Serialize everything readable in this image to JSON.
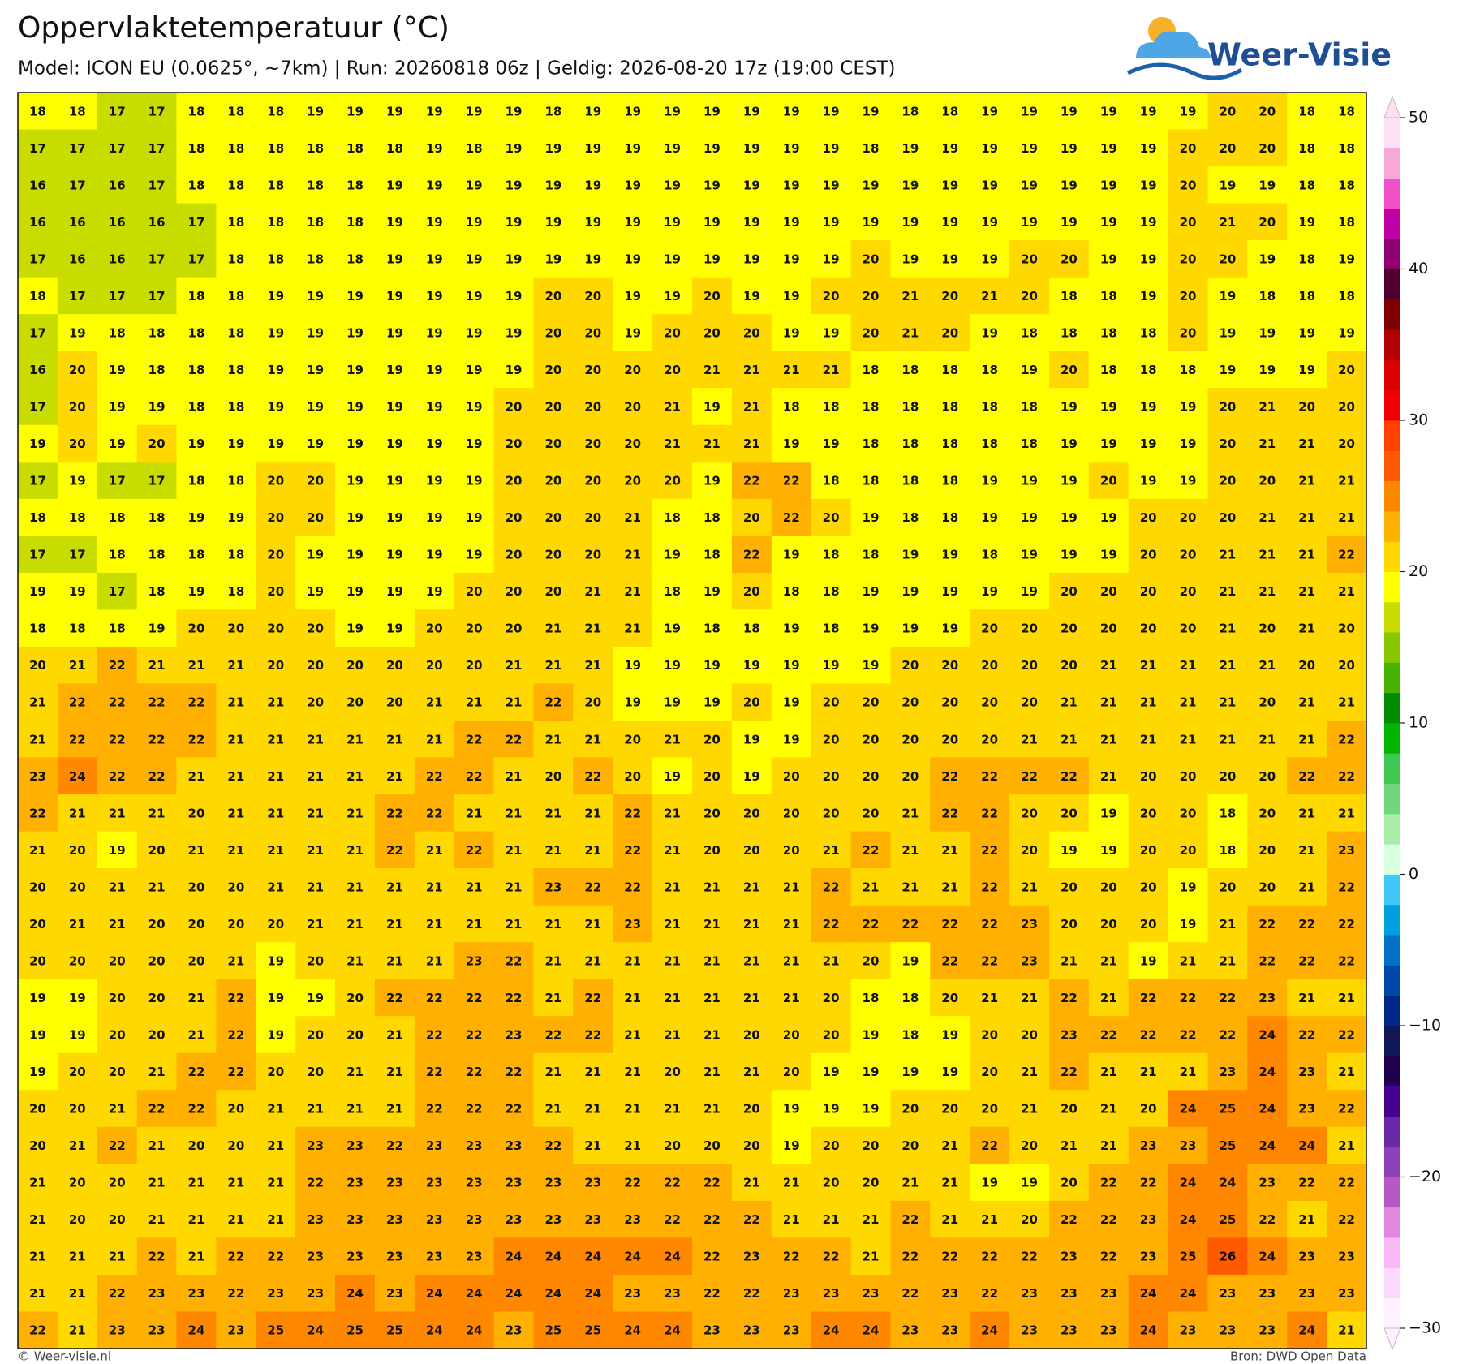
{
  "chart_data": {
    "type": "grid-map",
    "title": "Oppervlaktetemperatuur (°C)",
    "subtitle": "Model: ICON EU (0.0625°, ~7km)  |  Run: 20260818 06z  |  Geldig: 2026-08-20 17z (19:00 CEST)",
    "logo": "Weer-Visie",
    "footer_left": "© Weer-visie.nl",
    "footer_right": "Bron: DWD Open Data",
    "values": [
      [
        18,
        18,
        17,
        17,
        18,
        18,
        18,
        19,
        19,
        19,
        19,
        19,
        19,
        18,
        19,
        19,
        19,
        19,
        19,
        19,
        19,
        19,
        18,
        18,
        19,
        19,
        19,
        19,
        19,
        19,
        20,
        20,
        18,
        18
      ],
      [
        17,
        17,
        17,
        17,
        18,
        18,
        18,
        18,
        18,
        18,
        19,
        18,
        19,
        19,
        19,
        19,
        19,
        19,
        19,
        19,
        19,
        18,
        19,
        19,
        19,
        19,
        19,
        19,
        19,
        20,
        20,
        20,
        18,
        18
      ],
      [
        16,
        17,
        16,
        17,
        18,
        18,
        18,
        18,
        18,
        19,
        19,
        19,
        19,
        19,
        19,
        19,
        19,
        19,
        19,
        19,
        19,
        19,
        19,
        19,
        19,
        19,
        19,
        19,
        19,
        20,
        19,
        19,
        18,
        18
      ],
      [
        16,
        16,
        16,
        16,
        17,
        18,
        18,
        18,
        18,
        19,
        19,
        19,
        19,
        19,
        19,
        19,
        19,
        19,
        19,
        19,
        19,
        19,
        19,
        19,
        19,
        19,
        19,
        19,
        19,
        20,
        21,
        20,
        19,
        18
      ],
      [
        17,
        16,
        16,
        17,
        17,
        18,
        18,
        18,
        18,
        19,
        19,
        19,
        19,
        19,
        19,
        19,
        19,
        19,
        19,
        19,
        19,
        20,
        19,
        19,
        19,
        20,
        20,
        19,
        19,
        20,
        20,
        19,
        18,
        19
      ],
      [
        18,
        17,
        17,
        17,
        18,
        18,
        19,
        19,
        19,
        19,
        19,
        19,
        19,
        20,
        20,
        19,
        19,
        20,
        19,
        19,
        20,
        20,
        21,
        20,
        21,
        20,
        18,
        18,
        19,
        20,
        19,
        18,
        18,
        18
      ],
      [
        17,
        19,
        18,
        18,
        18,
        18,
        19,
        19,
        19,
        19,
        19,
        19,
        19,
        20,
        20,
        19,
        20,
        20,
        20,
        19,
        19,
        20,
        21,
        20,
        19,
        18,
        18,
        18,
        18,
        20,
        19,
        19,
        19,
        19
      ],
      [
        16,
        20,
        19,
        18,
        18,
        18,
        19,
        19,
        19,
        19,
        19,
        19,
        19,
        20,
        20,
        20,
        20,
        21,
        21,
        21,
        21,
        18,
        18,
        18,
        18,
        19,
        20,
        18,
        18,
        18,
        19,
        19,
        19,
        20
      ],
      [
        17,
        20,
        19,
        19,
        18,
        18,
        19,
        19,
        19,
        19,
        19,
        19,
        20,
        20,
        20,
        20,
        21,
        19,
        21,
        18,
        18,
        18,
        18,
        18,
        18,
        18,
        19,
        19,
        19,
        19,
        20,
        21,
        20,
        20
      ],
      [
        19,
        20,
        19,
        20,
        19,
        19,
        19,
        19,
        19,
        19,
        19,
        19,
        20,
        20,
        20,
        20,
        21,
        21,
        21,
        19,
        19,
        18,
        18,
        18,
        18,
        18,
        19,
        19,
        19,
        19,
        20,
        21,
        21,
        20
      ],
      [
        17,
        19,
        17,
        17,
        18,
        18,
        20,
        20,
        19,
        19,
        19,
        19,
        20,
        20,
        20,
        20,
        20,
        19,
        22,
        22,
        18,
        18,
        18,
        18,
        19,
        19,
        19,
        20,
        19,
        19,
        20,
        20,
        21,
        21
      ],
      [
        18,
        18,
        18,
        18,
        19,
        19,
        20,
        20,
        19,
        19,
        19,
        19,
        20,
        20,
        20,
        21,
        18,
        18,
        20,
        22,
        20,
        19,
        18,
        18,
        19,
        19,
        19,
        19,
        20,
        20,
        20,
        21,
        21,
        21
      ],
      [
        17,
        17,
        18,
        18,
        18,
        18,
        20,
        19,
        19,
        19,
        19,
        19,
        20,
        20,
        20,
        21,
        19,
        18,
        22,
        19,
        18,
        18,
        19,
        19,
        18,
        19,
        19,
        19,
        20,
        20,
        21,
        21,
        21,
        22
      ],
      [
        19,
        19,
        17,
        18,
        19,
        18,
        20,
        19,
        19,
        19,
        19,
        20,
        20,
        20,
        21,
        21,
        18,
        19,
        20,
        18,
        18,
        19,
        19,
        19,
        19,
        19,
        20,
        20,
        20,
        20,
        21,
        21,
        21,
        21
      ],
      [
        18,
        18,
        18,
        19,
        20,
        20,
        20,
        20,
        19,
        19,
        20,
        20,
        20,
        21,
        21,
        21,
        19,
        18,
        18,
        19,
        18,
        19,
        19,
        19,
        20,
        20,
        20,
        20,
        20,
        20,
        21,
        20,
        21,
        20
      ],
      [
        20,
        21,
        22,
        21,
        21,
        21,
        20,
        20,
        20,
        20,
        20,
        20,
        21,
        21,
        21,
        19,
        19,
        19,
        19,
        19,
        19,
        19,
        20,
        20,
        20,
        20,
        20,
        21,
        21,
        21,
        21,
        21,
        20,
        20
      ],
      [
        21,
        22,
        22,
        22,
        22,
        21,
        21,
        20,
        20,
        20,
        21,
        21,
        21,
        22,
        20,
        19,
        19,
        19,
        20,
        19,
        20,
        20,
        20,
        20,
        20,
        20,
        21,
        21,
        21,
        21,
        21,
        20,
        21,
        21
      ],
      [
        21,
        22,
        22,
        22,
        22,
        21,
        21,
        21,
        21,
        21,
        21,
        22,
        22,
        21,
        21,
        20,
        21,
        20,
        19,
        19,
        20,
        20,
        20,
        20,
        20,
        21,
        21,
        21,
        21,
        21,
        21,
        21,
        21,
        22
      ],
      [
        23,
        24,
        22,
        22,
        21,
        21,
        21,
        21,
        21,
        21,
        22,
        22,
        21,
        20,
        22,
        20,
        19,
        20,
        19,
        20,
        20,
        20,
        20,
        22,
        22,
        22,
        22,
        21,
        20,
        20,
        20,
        20,
        22,
        22
      ],
      [
        22,
        21,
        21,
        21,
        20,
        21,
        21,
        21,
        21,
        22,
        22,
        21,
        21,
        21,
        21,
        22,
        21,
        20,
        20,
        20,
        20,
        20,
        21,
        22,
        22,
        20,
        20,
        19,
        20,
        20,
        18,
        20,
        21,
        21
      ],
      [
        21,
        20,
        19,
        20,
        21,
        21,
        21,
        21,
        21,
        22,
        21,
        22,
        21,
        21,
        21,
        22,
        21,
        20,
        20,
        20,
        21,
        22,
        21,
        21,
        22,
        20,
        19,
        19,
        20,
        20,
        18,
        20,
        21,
        23
      ],
      [
        20,
        20,
        21,
        21,
        20,
        20,
        21,
        21,
        21,
        21,
        21,
        21,
        21,
        23,
        22,
        22,
        21,
        21,
        21,
        21,
        22,
        21,
        21,
        21,
        22,
        21,
        20,
        20,
        20,
        19,
        20,
        20,
        21,
        22
      ],
      [
        20,
        21,
        21,
        20,
        20,
        20,
        20,
        21,
        21,
        21,
        21,
        21,
        21,
        21,
        21,
        23,
        21,
        21,
        21,
        21,
        22,
        22,
        22,
        22,
        22,
        23,
        20,
        20,
        20,
        19,
        21,
        22,
        22,
        22
      ],
      [
        20,
        20,
        20,
        20,
        20,
        21,
        19,
        20,
        21,
        21,
        21,
        23,
        22,
        21,
        21,
        21,
        21,
        21,
        21,
        21,
        21,
        20,
        19,
        22,
        22,
        23,
        21,
        21,
        19,
        21,
        21,
        22,
        22,
        22
      ],
      [
        19,
        19,
        20,
        20,
        21,
        22,
        19,
        19,
        20,
        22,
        22,
        22,
        22,
        21,
        22,
        21,
        21,
        21,
        21,
        21,
        20,
        18,
        18,
        20,
        21,
        21,
        22,
        21,
        22,
        22,
        22,
        23,
        21,
        21
      ],
      [
        19,
        19,
        20,
        20,
        21,
        22,
        19,
        20,
        20,
        21,
        22,
        22,
        23,
        22,
        22,
        21,
        21,
        21,
        20,
        20,
        20,
        19,
        18,
        19,
        20,
        20,
        23,
        22,
        22,
        22,
        22,
        24,
        22,
        22
      ],
      [
        19,
        20,
        20,
        21,
        22,
        22,
        20,
        20,
        21,
        21,
        22,
        22,
        22,
        21,
        21,
        21,
        20,
        21,
        21,
        20,
        19,
        19,
        19,
        19,
        20,
        21,
        22,
        21,
        21,
        21,
        23,
        24,
        23,
        21
      ],
      [
        20,
        20,
        21,
        22,
        22,
        20,
        21,
        21,
        21,
        21,
        22,
        22,
        22,
        21,
        21,
        21,
        21,
        21,
        20,
        19,
        19,
        19,
        20,
        20,
        20,
        21,
        20,
        21,
        20,
        24,
        25,
        24,
        23,
        22
      ],
      [
        20,
        21,
        22,
        21,
        20,
        20,
        21,
        23,
        23,
        22,
        23,
        23,
        23,
        22,
        21,
        21,
        20,
        20,
        20,
        19,
        20,
        20,
        20,
        21,
        22,
        20,
        21,
        21,
        23,
        23,
        25,
        24,
        24,
        21
      ],
      [
        21,
        20,
        20,
        21,
        21,
        21,
        21,
        22,
        23,
        23,
        23,
        23,
        23,
        23,
        23,
        22,
        22,
        22,
        21,
        21,
        20,
        20,
        21,
        21,
        19,
        19,
        20,
        22,
        22,
        24,
        24,
        23,
        22,
        22
      ],
      [
        21,
        20,
        20,
        21,
        21,
        21,
        21,
        23,
        23,
        23,
        23,
        23,
        23,
        23,
        23,
        23,
        22,
        22,
        22,
        21,
        21,
        21,
        22,
        21,
        21,
        20,
        22,
        22,
        23,
        24,
        25,
        22,
        21,
        22
      ],
      [
        21,
        21,
        21,
        22,
        21,
        22,
        22,
        23,
        23,
        23,
        23,
        23,
        24,
        24,
        24,
        24,
        24,
        22,
        23,
        22,
        22,
        21,
        22,
        22,
        22,
        22,
        23,
        22,
        23,
        25,
        26,
        24,
        23,
        23
      ],
      [
        21,
        21,
        22,
        23,
        23,
        22,
        23,
        23,
        24,
        23,
        24,
        24,
        24,
        24,
        24,
        23,
        23,
        22,
        22,
        23,
        23,
        23,
        22,
        23,
        22,
        23,
        23,
        23,
        24,
        24,
        23,
        23,
        23,
        23
      ],
      [
        22,
        21,
        23,
        23,
        24,
        23,
        25,
        24,
        25,
        25,
        24,
        24,
        23,
        25,
        25,
        24,
        24,
        23,
        23,
        23,
        24,
        24,
        23,
        23,
        24,
        23,
        23,
        23,
        24,
        23,
        23,
        23,
        24,
        21
      ]
    ],
    "colorbar": {
      "clim": [
        -30,
        50
      ],
      "colors": [
        "#fff0ff",
        "#ffd8ff",
        "#f8b8f8",
        "#e088e0",
        "#b858c8",
        "#9040b8",
        "#6828a8",
        "#480090",
        "#200050",
        "#101858",
        "#002888",
        "#0048a8",
        "#0070c8",
        "#00a0e0",
        "#40c8f8",
        "#d8ffe0",
        "#a8eca8",
        "#70d878",
        "#40c850",
        "#00b400",
        "#008c00",
        "#48b000",
        "#88c800",
        "#c8dc00",
        "#ffff00",
        "#ffd800",
        "#ffb000",
        "#ff8800",
        "#ff5a00",
        "#ff4000",
        "#f00000",
        "#d80000",
        "#b00000",
        "#800000",
        "#500030",
        "#900070",
        "#c000a8",
        "#f050c8",
        "#f8a8d8",
        "#fde0f2"
      ],
      "ticks": [
        {
          "value": -30,
          "label": "−30"
        },
        {
          "value": -20,
          "label": "−20"
        },
        {
          "value": -10,
          "label": "−10"
        },
        0,
        10,
        20,
        30,
        40,
        50
      ]
    }
  }
}
